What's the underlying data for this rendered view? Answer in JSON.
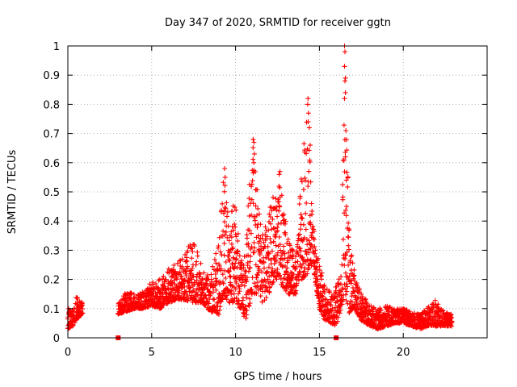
{
  "chart_data": {
    "type": "scatter",
    "title": "Day 347 of 2020, SRMTID for receiver ggtn",
    "xlabel": "GPS time / hours",
    "ylabel": "SRMTID / TECUs",
    "xlim": [
      0,
      25
    ],
    "ylim": [
      0,
      1
    ],
    "xticks": [
      0,
      5,
      10,
      15,
      20
    ],
    "yticks": [
      0,
      0.1,
      0.2,
      0.3,
      0.4,
      0.5,
      0.6,
      0.7,
      0.8,
      0.9,
      1
    ],
    "grid": true,
    "marker": "+",
    "color": "#ff0000",
    "zero_markers": [
      3.0,
      16.0
    ],
    "envelope": [
      [
        0.0,
        0.03,
        0.1
      ],
      [
        0.3,
        0.04,
        0.1
      ],
      [
        0.5,
        0.06,
        0.14
      ],
      [
        0.9,
        0.08,
        0.13
      ],
      [
        3.0,
        0.08,
        0.12
      ],
      [
        3.5,
        0.09,
        0.16
      ],
      [
        4.0,
        0.1,
        0.15
      ],
      [
        4.5,
        0.1,
        0.16
      ],
      [
        5.0,
        0.11,
        0.2
      ],
      [
        5.5,
        0.1,
        0.2
      ],
      [
        6.0,
        0.12,
        0.24
      ],
      [
        6.5,
        0.13,
        0.26
      ],
      [
        7.0,
        0.13,
        0.3
      ],
      [
        7.5,
        0.12,
        0.35
      ],
      [
        8.0,
        0.12,
        0.26
      ],
      [
        8.5,
        0.09,
        0.22
      ],
      [
        9.0,
        0.08,
        0.33
      ],
      [
        9.3,
        0.15,
        0.58
      ],
      [
        9.6,
        0.12,
        0.38
      ],
      [
        10.0,
        0.12,
        0.5
      ],
      [
        10.3,
        0.1,
        0.28
      ],
      [
        10.6,
        0.06,
        0.33
      ],
      [
        11.0,
        0.15,
        0.68
      ],
      [
        11.3,
        0.15,
        0.5
      ],
      [
        11.6,
        0.12,
        0.35
      ],
      [
        12.0,
        0.15,
        0.45
      ],
      [
        12.3,
        0.2,
        0.5
      ],
      [
        12.6,
        0.2,
        0.57
      ],
      [
        13.0,
        0.15,
        0.4
      ],
      [
        13.3,
        0.15,
        0.34
      ],
      [
        13.6,
        0.15,
        0.3
      ],
      [
        14.0,
        0.2,
        0.61
      ],
      [
        14.3,
        0.22,
        0.82
      ],
      [
        14.6,
        0.25,
        0.4
      ],
      [
        15.0,
        0.1,
        0.25
      ],
      [
        15.3,
        0.06,
        0.2
      ],
      [
        15.7,
        0.05,
        0.15
      ],
      [
        16.0,
        0.04,
        0.18
      ],
      [
        16.3,
        0.1,
        0.22
      ],
      [
        16.5,
        0.15,
        1.0
      ],
      [
        16.8,
        0.08,
        0.35
      ],
      [
        17.1,
        0.1,
        0.22
      ],
      [
        17.5,
        0.06,
        0.15
      ],
      [
        18.0,
        0.04,
        0.12
      ],
      [
        18.5,
        0.03,
        0.1
      ],
      [
        19.0,
        0.04,
        0.11
      ],
      [
        19.5,
        0.05,
        0.1
      ],
      [
        20.0,
        0.05,
        0.1
      ],
      [
        20.5,
        0.04,
        0.09
      ],
      [
        21.0,
        0.03,
        0.08
      ],
      [
        21.5,
        0.04,
        0.12
      ],
      [
        22.0,
        0.04,
        0.13
      ],
      [
        22.5,
        0.04,
        0.09
      ],
      [
        22.9,
        0.04,
        0.08
      ]
    ],
    "segments": [
      [
        0.0,
        0.9
      ],
      [
        3.0,
        22.9
      ]
    ],
    "spikes": [
      [
        9.35,
        0.58
      ],
      [
        9.38,
        0.55
      ],
      [
        11.05,
        0.68
      ],
      [
        11.1,
        0.67
      ],
      [
        11.12,
        0.63
      ],
      [
        12.65,
        0.57
      ],
      [
        12.6,
        0.56
      ],
      [
        14.32,
        0.82
      ],
      [
        14.3,
        0.8
      ],
      [
        14.35,
        0.77
      ],
      [
        14.33,
        0.74
      ],
      [
        14.4,
        0.72
      ],
      [
        14.45,
        0.66
      ],
      [
        16.5,
        1.0
      ],
      [
        16.52,
        0.98
      ],
      [
        16.5,
        0.93
      ],
      [
        16.55,
        0.89
      ],
      [
        16.52,
        0.88
      ],
      [
        16.55,
        0.84
      ],
      [
        16.5,
        0.82
      ],
      [
        16.58,
        0.71
      ],
      [
        16.55,
        0.62
      ],
      [
        16.6,
        0.54
      ],
      [
        16.62,
        0.45
      ]
    ]
  }
}
